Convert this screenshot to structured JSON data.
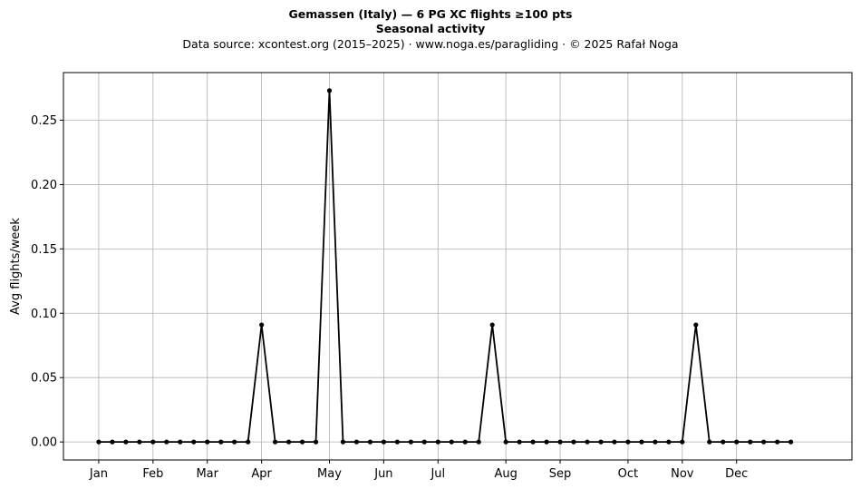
{
  "chart_data": {
    "type": "line",
    "title_line1": "Gemassen (Italy)  —  6 PG XC flights ≥100 pts",
    "title_line2": "Seasonal activity",
    "subtitle": "Data source: xcontest.org (2015–2025)  ·  www.noga.es/paragliding  ·  © 2025 Rafał Noga",
    "xlabel": "",
    "ylabel": "Avg flights/week",
    "ylim": [
      -0.014,
      0.287
    ],
    "yticks": [
      0.0,
      0.05,
      0.1,
      0.15,
      0.2,
      0.25
    ],
    "ytick_labels": [
      "0.00",
      "0.05",
      "0.10",
      "0.15",
      "0.20",
      "0.25"
    ],
    "xlim": [
      -2.6,
      55.5
    ],
    "month_ticks": [
      {
        "label": "Jan",
        "week": 0
      },
      {
        "label": "Feb",
        "week": 4
      },
      {
        "label": "Mar",
        "week": 8
      },
      {
        "label": "Apr",
        "week": 12
      },
      {
        "label": "May",
        "week": 17
      },
      {
        "label": "Jun",
        "week": 21
      },
      {
        "label": "Jul",
        "week": 25
      },
      {
        "label": "Aug",
        "week": 30
      },
      {
        "label": "Sep",
        "week": 34
      },
      {
        "label": "Oct",
        "week": 39
      },
      {
        "label": "Nov",
        "week": 43
      },
      {
        "label": "Dec",
        "week": 47
      }
    ],
    "grid": true,
    "series": [
      {
        "color": "#000000",
        "x": [
          0,
          1,
          2,
          3,
          4,
          5,
          6,
          7,
          8,
          9,
          10,
          11,
          12,
          13,
          14,
          15,
          16,
          17,
          18,
          19,
          20,
          21,
          22,
          23,
          24,
          25,
          26,
          27,
          28,
          29,
          30,
          31,
          32,
          33,
          34,
          35,
          36,
          37,
          38,
          39,
          40,
          41,
          42,
          43,
          44,
          45,
          46,
          47,
          48,
          49,
          50,
          51
        ],
        "values": [
          0,
          0,
          0,
          0,
          0,
          0,
          0,
          0,
          0,
          0,
          0,
          0,
          0.091,
          0,
          0,
          0,
          0,
          0.273,
          0,
          0,
          0,
          0,
          0,
          0,
          0,
          0,
          0,
          0,
          0,
          0.091,
          0,
          0,
          0,
          0,
          0,
          0,
          0,
          0,
          0,
          0,
          0,
          0,
          0,
          0,
          0.091,
          0,
          0,
          0,
          0,
          0,
          0,
          0
        ]
      }
    ]
  }
}
